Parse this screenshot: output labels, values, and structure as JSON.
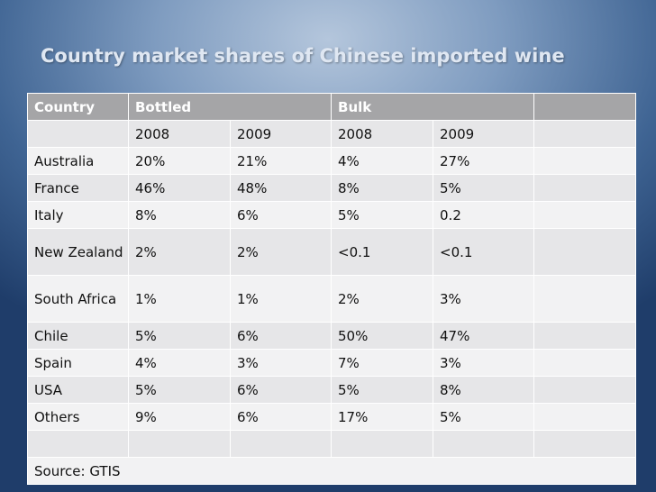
{
  "title": "Country market shares of Chinese imported wine",
  "table": {
    "header": [
      "Country",
      "Bottled",
      "Bulk"
    ],
    "subheader": [
      "2008",
      "2009",
      "2008",
      "2009"
    ],
    "rows": [
      [
        "Australia",
        "20%",
        "21%",
        "4%",
        "27%"
      ],
      [
        "France",
        "46%",
        "48%",
        "8%",
        "5%"
      ],
      [
        "Italy",
        "8%",
        "6%",
        "5%",
        "0.2"
      ],
      [
        "New Zealand",
        "2%",
        "2%",
        "<0.1",
        "<0.1"
      ],
      [
        "South Africa",
        "1%",
        "1%",
        "2%",
        "3%"
      ],
      [
        "Chile",
        "5%",
        "6%",
        "50%",
        "47%"
      ],
      [
        "Spain",
        "4%",
        "3%",
        "7%",
        "3%"
      ],
      [
        "USA",
        "5%",
        "6%",
        "5%",
        "8%"
      ],
      [
        "Others",
        "9%",
        "6%",
        "17%",
        "5%"
      ]
    ],
    "source": "Source: GTIS"
  }
}
